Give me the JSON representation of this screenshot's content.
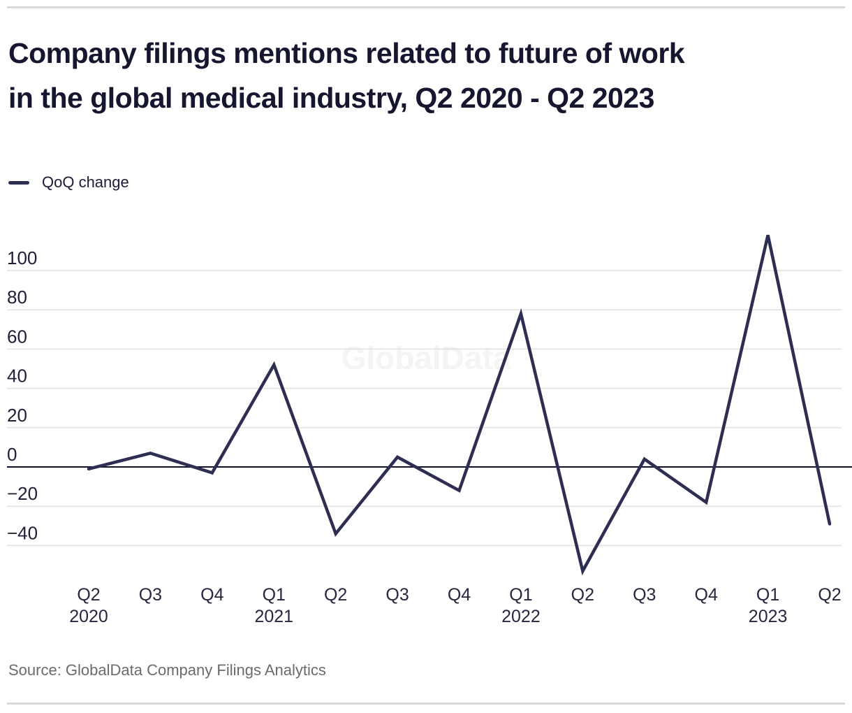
{
  "header": {
    "title_line1": "Company filings mentions related to future of work",
    "title_line2": "in the global medical industry, Q2 2020 - Q2 2023"
  },
  "legend": {
    "label": "QoQ change"
  },
  "watermark": "GlobalData",
  "footer": {
    "source": "Source: GlobalData Company Filings Analytics"
  },
  "chart_data": {
    "type": "line",
    "title": "Company filings mentions related to future of work in the global medical industry, Q2 2020 - Q2 2023",
    "categories": [
      "Q2 2020",
      "Q3 2020",
      "Q4 2020",
      "Q1 2021",
      "Q2 2021",
      "Q3 2021",
      "Q4 2021",
      "Q1 2022",
      "Q2 2022",
      "Q3 2022",
      "Q4 2022",
      "Q1 2023",
      "Q2 2023"
    ],
    "x_tick_lines": [
      [
        "Q2",
        "2020"
      ],
      [
        "Q3"
      ],
      [
        "Q4"
      ],
      [
        "Q1",
        "2021"
      ],
      [
        "Q2"
      ],
      [
        "Q3"
      ],
      [
        "Q4"
      ],
      [
        "Q1",
        "2022"
      ],
      [
        "Q2"
      ],
      [
        "Q3"
      ],
      [
        "Q4"
      ],
      [
        "Q1",
        "2023"
      ],
      [
        "Q2"
      ]
    ],
    "series": [
      {
        "name": "QoQ change",
        "values": [
          -1,
          7,
          -3,
          52,
          -34,
          5,
          -12,
          78,
          -53,
          4,
          -18,
          118,
          -29
        ]
      }
    ],
    "yticks": [
      100,
      80,
      60,
      40,
      20,
      0,
      -20,
      -40
    ],
    "ylim": [
      -60,
      125
    ],
    "xlabel": "",
    "ylabel": "",
    "grid": true,
    "legend_position": "top-left",
    "colors": {
      "line": "#2e2e52",
      "zero_axis": "#10102a",
      "gridline": "#e1e1e1",
      "tick_text": "#202039",
      "watermark": "#f4f4f2",
      "divider": "#d9d9d9"
    }
  }
}
